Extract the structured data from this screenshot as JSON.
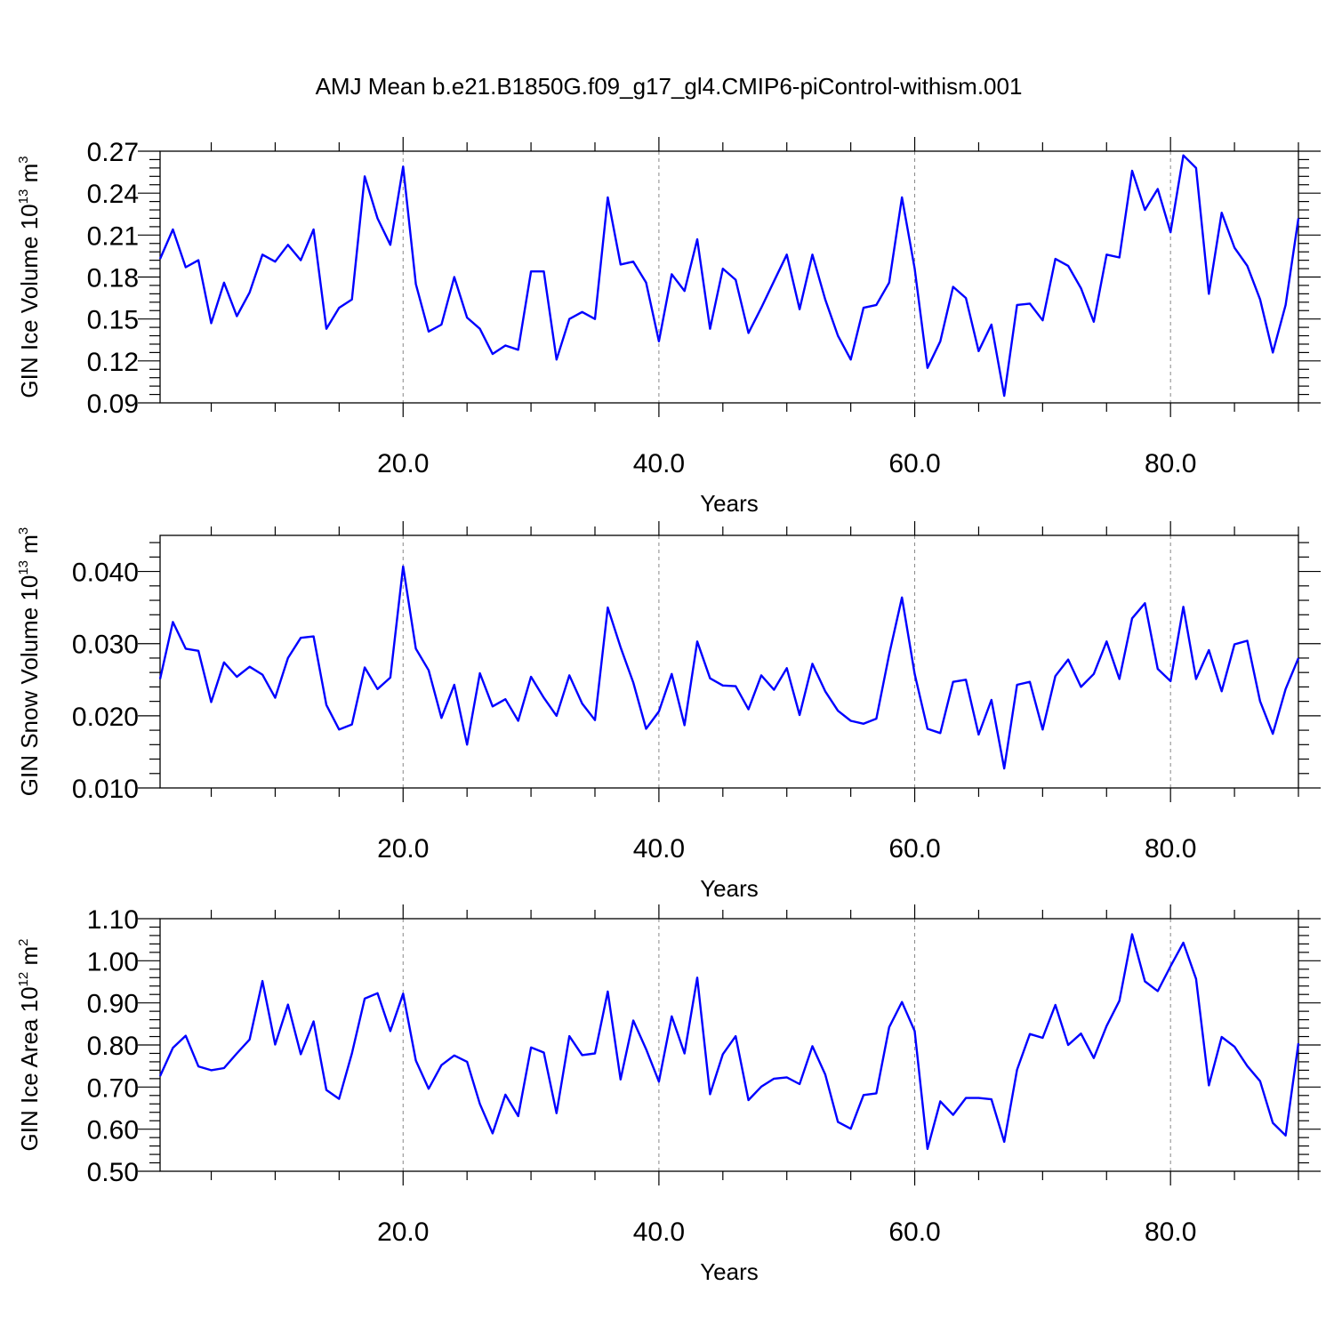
{
  "title": "AMJ Mean b.e21.B1850G.f09_g17_gl4.CMIP6-piControl-withism.001",
  "colors": {
    "line": "#0000ff",
    "axis": "#000000",
    "grid": "#888888"
  },
  "chart_data": [
    {
      "type": "line",
      "ylabel": {
        "main": "GIN Ice Volume 10",
        "sup": "13",
        "unit": " m",
        "unit_sup": "3"
      },
      "xlabel": "Years",
      "xlim": [
        1,
        90
      ],
      "ylim": [
        0.09,
        0.27
      ],
      "ytick_values": [
        0.09,
        0.12,
        0.15,
        0.18,
        0.21,
        0.24,
        0.27
      ],
      "ytick_labels": [
        "0.09",
        "0.12",
        "0.15",
        "0.18",
        "0.21",
        "0.24",
        "0.27"
      ],
      "xtick_values": [
        20,
        40,
        60,
        80
      ],
      "xtick_labels": [
        "20.0",
        "40.0",
        "60.0",
        "80.0"
      ],
      "grid": "vertical dashed at major x ticks",
      "series": [
        {
          "x_start": 1,
          "x_step": 1,
          "values": [
            0.193,
            0.214,
            0.187,
            0.192,
            0.147,
            0.176,
            0.152,
            0.169,
            0.196,
            0.191,
            0.203,
            0.192,
            0.214,
            0.143,
            0.158,
            0.164,
            0.252,
            0.222,
            0.203,
            0.259,
            0.175,
            0.141,
            0.146,
            0.18,
            0.151,
            0.143,
            0.125,
            0.131,
            0.128,
            0.184,
            0.184,
            0.121,
            0.15,
            0.155,
            0.15,
            0.237,
            0.189,
            0.191,
            0.176,
            0.134,
            0.182,
            0.17,
            0.207,
            0.143,
            0.186,
            0.178,
            0.14,
            0.158,
            0.177,
            0.196,
            0.157,
            0.196,
            0.164,
            0.138,
            0.121,
            0.158,
            0.16,
            0.176,
            0.237,
            0.186,
            0.115,
            0.134,
            0.173,
            0.165,
            0.127,
            0.146,
            0.095,
            0.16,
            0.161,
            0.149,
            0.193,
            0.188,
            0.172,
            0.148,
            0.196,
            0.194,
            0.256,
            0.228,
            0.243,
            0.212,
            0.267,
            0.258,
            0.168,
            0.226,
            0.201,
            0.188,
            0.164,
            0.126,
            0.16,
            0.222
          ]
        }
      ]
    },
    {
      "type": "line",
      "ylabel": {
        "main": "GIN Snow Volume 10",
        "sup": "13",
        "unit": " m",
        "unit_sup": "3"
      },
      "xlabel": "Years",
      "xlim": [
        1,
        90
      ],
      "ylim": [
        0.01,
        0.045
      ],
      "ytick_values": [
        0.01,
        0.02,
        0.03,
        0.04
      ],
      "ytick_labels": [
        "0.010",
        "0.020",
        "0.030",
        "0.040"
      ],
      "xtick_values": [
        20,
        40,
        60,
        80
      ],
      "xtick_labels": [
        "20.0",
        "40.0",
        "60.0",
        "80.0"
      ],
      "grid": "vertical dashed at major x ticks",
      "series": [
        {
          "x_start": 1,
          "x_step": 1,
          "values": [
            0.0251,
            0.033,
            0.0293,
            0.029,
            0.0219,
            0.0274,
            0.0254,
            0.0268,
            0.0257,
            0.0225,
            0.028,
            0.0308,
            0.031,
            0.0215,
            0.0181,
            0.0188,
            0.0267,
            0.0237,
            0.0253,
            0.0407,
            0.0293,
            0.0263,
            0.0197,
            0.0243,
            0.016,
            0.0259,
            0.0213,
            0.0223,
            0.0193,
            0.0254,
            0.0225,
            0.02,
            0.0256,
            0.0217,
            0.0194,
            0.035,
            0.0295,
            0.0246,
            0.0182,
            0.0206,
            0.0258,
            0.0187,
            0.0303,
            0.0252,
            0.0242,
            0.0241,
            0.0209,
            0.0256,
            0.0236,
            0.0266,
            0.0201,
            0.0272,
            0.0234,
            0.0207,
            0.0193,
            0.0189,
            0.0196,
            0.0285,
            0.0364,
            0.0258,
            0.0182,
            0.0176,
            0.0247,
            0.025,
            0.0174,
            0.0222,
            0.0127,
            0.0243,
            0.0247,
            0.0181,
            0.0255,
            0.0278,
            0.024,
            0.0258,
            0.0303,
            0.0251,
            0.0335,
            0.0356,
            0.0265,
            0.0248,
            0.0351,
            0.0251,
            0.0291,
            0.0234,
            0.0299,
            0.0304,
            0.022,
            0.0175,
            0.0237,
            0.028
          ]
        }
      ]
    },
    {
      "type": "line",
      "ylabel": {
        "main": "GIN Ice Area 10",
        "sup": "12",
        "unit": " m",
        "unit_sup": "2"
      },
      "xlabel": "Years",
      "xlim": [
        1,
        90
      ],
      "ylim": [
        0.5,
        1.1
      ],
      "ytick_values": [
        0.5,
        0.6,
        0.7,
        0.8,
        0.9,
        1.0,
        1.1
      ],
      "ytick_labels": [
        "0.50",
        "0.60",
        "0.70",
        "0.80",
        "0.90",
        "1.00",
        "1.10"
      ],
      "xtick_values": [
        20,
        40,
        60,
        80
      ],
      "xtick_labels": [
        "20.0",
        "40.0",
        "60.0",
        "80.0"
      ],
      "grid": "vertical dashed at major x ticks",
      "series": [
        {
          "x_start": 1,
          "x_step": 1,
          "values": [
            0.726,
            0.793,
            0.822,
            0.749,
            0.74,
            0.745,
            0.78,
            0.813,
            0.952,
            0.801,
            0.896,
            0.778,
            0.856,
            0.693,
            0.672,
            0.78,
            0.91,
            0.923,
            0.833,
            0.922,
            0.763,
            0.696,
            0.752,
            0.775,
            0.76,
            0.66,
            0.59,
            0.682,
            0.631,
            0.794,
            0.782,
            0.638,
            0.821,
            0.776,
            0.78,
            0.927,
            0.718,
            0.858,
            0.79,
            0.713,
            0.868,
            0.78,
            0.96,
            0.683,
            0.778,
            0.821,
            0.669,
            0.701,
            0.72,
            0.723,
            0.707,
            0.797,
            0.73,
            0.617,
            0.601,
            0.681,
            0.685,
            0.842,
            0.902,
            0.833,
            0.553,
            0.666,
            0.634,
            0.674,
            0.674,
            0.671,
            0.57,
            0.741,
            0.826,
            0.817,
            0.895,
            0.8,
            0.827,
            0.769,
            0.845,
            0.905,
            1.063,
            0.951,
            0.928,
            0.987,
            1.043,
            0.957,
            0.704,
            0.819,
            0.796,
            0.75,
            0.714,
            0.615,
            0.585,
            0.804
          ]
        }
      ]
    }
  ]
}
